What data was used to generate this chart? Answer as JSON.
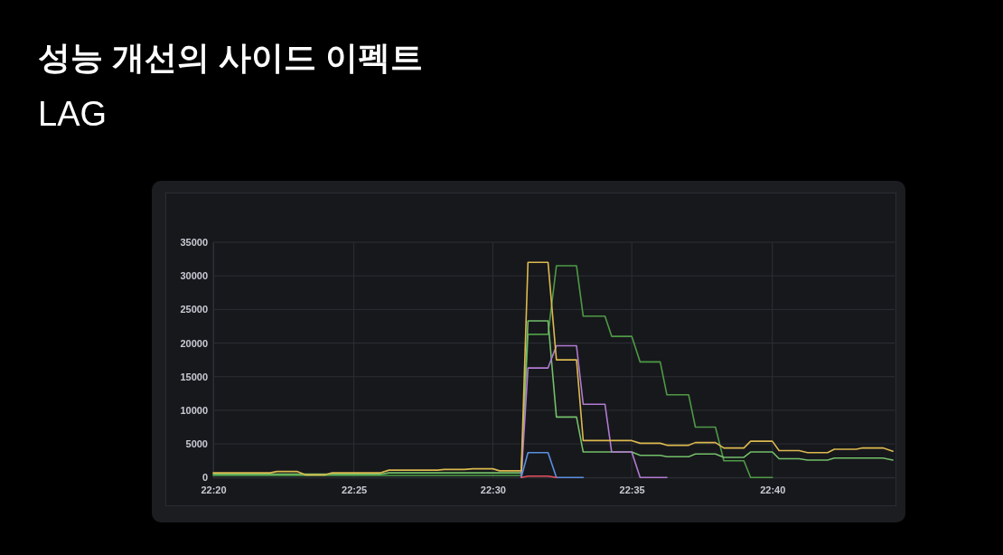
{
  "chart_data": {
    "type": "line",
    "title": "성능 개선의 사이드 이펙트",
    "subtitle": "LAG",
    "xlim": [
      22.333,
      22.74
    ],
    "xticks": [
      {
        "value": 22.333,
        "label": "22:20"
      },
      {
        "value": 22.417,
        "label": "22:25"
      },
      {
        "value": 22.5,
        "label": "22:30"
      },
      {
        "value": 22.583,
        "label": "22:35"
      },
      {
        "value": 22.667,
        "label": "22:40"
      }
    ],
    "ylim": [
      0,
      35000
    ],
    "yticks": [
      0,
      5000,
      10000,
      15000,
      20000,
      25000,
      30000,
      35000
    ],
    "grid": true,
    "series": [
      {
        "color": "#4e9a45",
        "x": [
          22.333,
          22.517,
          22.521,
          22.533,
          22.538,
          22.55,
          22.554,
          22.567,
          22.571,
          22.583,
          22.588,
          22.6,
          22.604,
          22.617,
          22.621,
          22.633,
          22.638,
          22.65,
          22.654,
          22.667
        ],
        "values": [
          300,
          300,
          21300,
          21300,
          31500,
          31500,
          24000,
          24000,
          21000,
          21000,
          17200,
          17200,
          12300,
          12300,
          7500,
          7500,
          2500,
          2500,
          0,
          0
        ]
      },
      {
        "color": "#73bf69",
        "x": [
          22.333,
          22.433,
          22.438,
          22.517,
          22.521,
          22.533,
          22.538,
          22.55,
          22.554,
          22.583,
          22.588,
          22.6,
          22.604,
          22.617,
          22.621,
          22.633,
          22.638,
          22.65,
          22.654,
          22.667,
          22.671,
          22.683,
          22.688,
          22.7,
          22.704,
          22.733,
          22.739
        ],
        "values": [
          500,
          500,
          700,
          700,
          23300,
          23300,
          9000,
          9000,
          3800,
          3800,
          3300,
          3300,
          3100,
          3100,
          3500,
          3500,
          3000,
          3000,
          3800,
          3800,
          2800,
          2800,
          2600,
          2600,
          2900,
          2900,
          2600
        ]
      },
      {
        "color": "#b27ad1",
        "x": [
          22.517,
          22.521,
          22.533,
          22.538,
          22.55,
          22.554,
          22.567,
          22.571,
          22.583,
          22.588,
          22.604
        ],
        "values": [
          0,
          16300,
          16300,
          19600,
          19600,
          10900,
          10900,
          3800,
          3800,
          0,
          0
        ]
      },
      {
        "color": "#5b8fe0",
        "x": [
          22.517,
          22.521,
          22.533,
          22.538,
          22.554
        ],
        "values": [
          0,
          3700,
          3700,
          0,
          0
        ]
      },
      {
        "color": "#e8505e",
        "x": [
          22.517,
          22.521,
          22.533,
          22.538
        ],
        "values": [
          0,
          200,
          200,
          0
        ]
      },
      {
        "color": "#dcb94f",
        "x": [
          22.333,
          22.367,
          22.371,
          22.383,
          22.388,
          22.4,
          22.404,
          22.433,
          22.438,
          22.467,
          22.471,
          22.483,
          22.488,
          22.5,
          22.504,
          22.517,
          22.521,
          22.533,
          22.538,
          22.55,
          22.554,
          22.583,
          22.588,
          22.6,
          22.604,
          22.617,
          22.621,
          22.633,
          22.638,
          22.65,
          22.654,
          22.667,
          22.671,
          22.683,
          22.688,
          22.7,
          22.704,
          22.717,
          22.721,
          22.733,
          22.739
        ],
        "values": [
          700,
          700,
          900,
          900,
          400,
          400,
          700,
          700,
          1100,
          1100,
          1200,
          1200,
          1300,
          1300,
          1000,
          1000,
          32000,
          32000,
          17500,
          17500,
          5500,
          5500,
          5100,
          5100,
          4800,
          4800,
          5200,
          5200,
          4400,
          4400,
          5400,
          5400,
          4000,
          4000,
          3700,
          3700,
          4200,
          4200,
          4400,
          4400,
          3900
        ]
      }
    ]
  }
}
